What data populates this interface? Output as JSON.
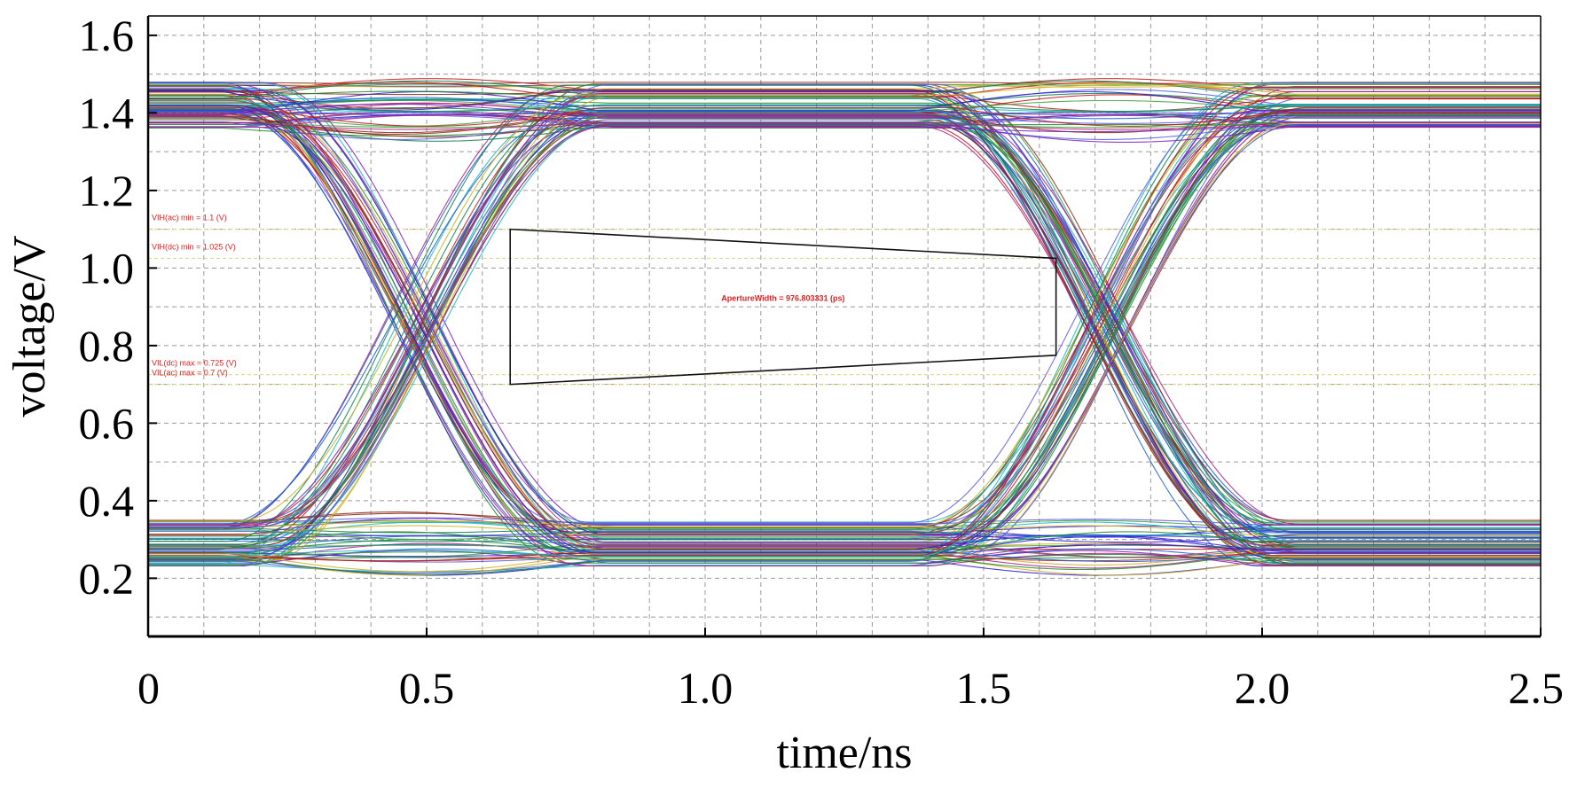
{
  "chart_data": {
    "type": "line",
    "title": "",
    "xlabel": "time/ns",
    "ylabel": "voltage/V",
    "xlim": [
      0,
      2.5
    ],
    "ylim": [
      0.05,
      1.65
    ],
    "x_ticks": [
      {
        "value": 0,
        "label": "0"
      },
      {
        "value": 0.5,
        "label": "0.5"
      },
      {
        "value": 1.0,
        "label": "1.0"
      },
      {
        "value": 1.5,
        "label": "1.5"
      },
      {
        "value": 2.0,
        "label": "2.0"
      },
      {
        "value": 2.5,
        "label": "2.5"
      }
    ],
    "y_ticks": [
      {
        "value": 0.2,
        "label": "0.2"
      },
      {
        "value": 0.4,
        "label": "0.4"
      },
      {
        "value": 0.6,
        "label": "0.6"
      },
      {
        "value": 0.8,
        "label": "0.8"
      },
      {
        "value": 1.0,
        "label": "1.0"
      },
      {
        "value": 1.2,
        "label": "1.2"
      },
      {
        "value": 1.4,
        "label": "1.4"
      },
      {
        "value": 1.6,
        "label": "1.6"
      }
    ],
    "grid": true,
    "eye_diagram": {
      "high_level": 1.42,
      "low_level": 0.29,
      "crossings": [
        0.48,
        1.72
      ],
      "ui": 1.24,
      "transition_time": 0.62,
      "crossing_level": 0.85
    },
    "thresholds": [
      {
        "name": "VIH(ac) min = 1.1 (V)",
        "value": 1.1,
        "color": "#e0d890"
      },
      {
        "name": "VIH(dc) min = 1.025 (V)",
        "value": 1.025,
        "color": "#e0d890"
      },
      {
        "name": "VIL(dc) max = 0.725 (V)",
        "value": 0.725,
        "color": "#e0d890"
      },
      {
        "name": "VIL(ac) max = 0.7 (V)",
        "value": 0.7,
        "color": "#e0d890"
      }
    ],
    "aperture": {
      "label": "ApertureWidth = 976.803331 (ps)",
      "x_left": 0.65,
      "x_right": 1.63,
      "y_top_left": 1.1,
      "y_top_right": 1.025,
      "y_bottom_left": 0.7,
      "y_bottom_right": 0.775,
      "label_x": 1.14,
      "label_y": 0.915
    },
    "series_palette": [
      "#2a1bd0",
      "#1a8c2a",
      "#c01818",
      "#16b8c8",
      "#7a1fb8",
      "#d0b020",
      "#8a2a18",
      "#1a5ad0",
      "#40a040",
      "#b02080",
      "#5a5ae0",
      "#108050"
    ]
  }
}
